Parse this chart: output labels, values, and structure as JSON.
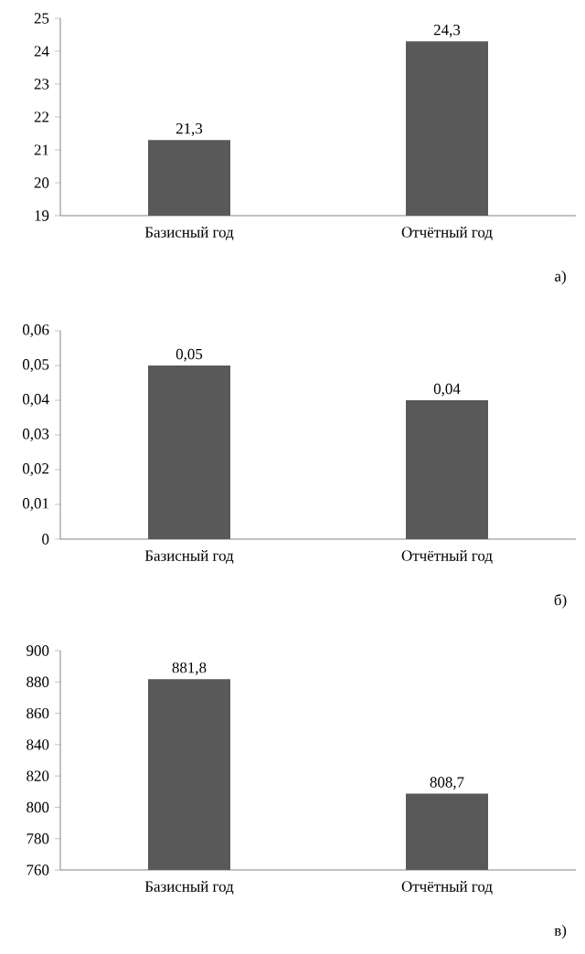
{
  "chart_data": [
    {
      "type": "bar",
      "categories": [
        "Базисный год",
        "Отчётный год"
      ],
      "values": [
        21.3,
        24.3
      ],
      "value_labels": [
        "21,3",
        "24,3"
      ],
      "color": "#595959",
      "ylim": [
        19,
        25
      ],
      "yticks": [
        19,
        20,
        21,
        22,
        23,
        24,
        25
      ],
      "annotations": [
        "а)"
      ]
    },
    {
      "type": "bar",
      "categories": [
        "Базисный год",
        "Отчётный год"
      ],
      "values": [
        0.05,
        0.04
      ],
      "value_labels": [
        "0,05",
        "0,04"
      ],
      "color": "#595959",
      "ylim": [
        0,
        0.06
      ],
      "yticks": [
        0,
        {
          "value": 0.01,
          "label": "0,01"
        },
        {
          "value": 0.02,
          "label": "0,02"
        },
        {
          "value": 0.03,
          "label": "0,03"
        },
        {
          "value": 0.04,
          "label": "0,04"
        },
        {
          "value": 0.05,
          "label": "0,05"
        },
        {
          "value": 0.06,
          "label": "0,06"
        }
      ],
      "annotations": [
        "б)"
      ]
    },
    {
      "type": "bar",
      "categories": [
        "Базисный год",
        "Отчётный год"
      ],
      "values": [
        881.8,
        808.7
      ],
      "value_labels": [
        "881,8",
        "808,7"
      ],
      "color": "#595959",
      "ylim": [
        760,
        900
      ],
      "yticks": [
        760,
        780,
        800,
        820,
        840,
        860,
        880,
        900
      ],
      "annotations": [
        "в)"
      ]
    }
  ]
}
